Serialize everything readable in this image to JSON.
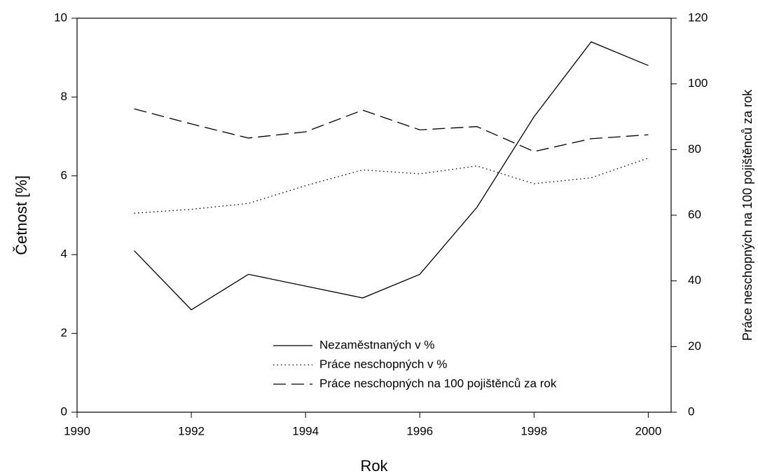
{
  "chart_data": {
    "type": "line",
    "xlabel": "Rok",
    "ylabel": "Četnost [%]",
    "y2label": "Práce neschopných na 100 pojištěnců za rok",
    "x": [
      1991,
      1992,
      1993,
      1994,
      1995,
      1996,
      1997,
      1998,
      1999,
      2000
    ],
    "series": [
      {
        "name": "Nezaměstnaných v %",
        "color": "#000000",
        "linestyle": "solid",
        "axis": "y",
        "values": [
          4.1,
          2.6,
          3.5,
          3.2,
          2.9,
          3.5,
          5.2,
          7.5,
          9.4,
          8.8
        ]
      },
      {
        "name": "Práce neschopných v %",
        "color": "#000000",
        "linestyle": "dotted",
        "axis": "y",
        "values": [
          5.05,
          5.15,
          5.3,
          5.75,
          6.15,
          6.05,
          6.25,
          5.8,
          5.95,
          6.45
        ]
      },
      {
        "name": "Práce neschopných na 100 pojištěnců za rok",
        "color": "#000000",
        "linestyle": "dashed",
        "axis": "y2",
        "values": [
          92.4,
          87.8,
          83.5,
          85.4,
          92,
          86,
          87,
          79.4,
          83.3,
          84.5
        ]
      }
    ],
    "xlim": [
      1990,
      2000.4
    ],
    "xticks": [
      1990,
      1992,
      1994,
      1996,
      1998,
      2000
    ],
    "ylim": [
      0,
      10
    ],
    "yticks": [
      0,
      2,
      4,
      6,
      8,
      10
    ],
    "y2lim": [
      0,
      120
    ],
    "y2ticks": [
      0,
      20,
      40,
      60,
      80,
      100,
      120
    ],
    "grid": false,
    "legend": "lower center"
  }
}
